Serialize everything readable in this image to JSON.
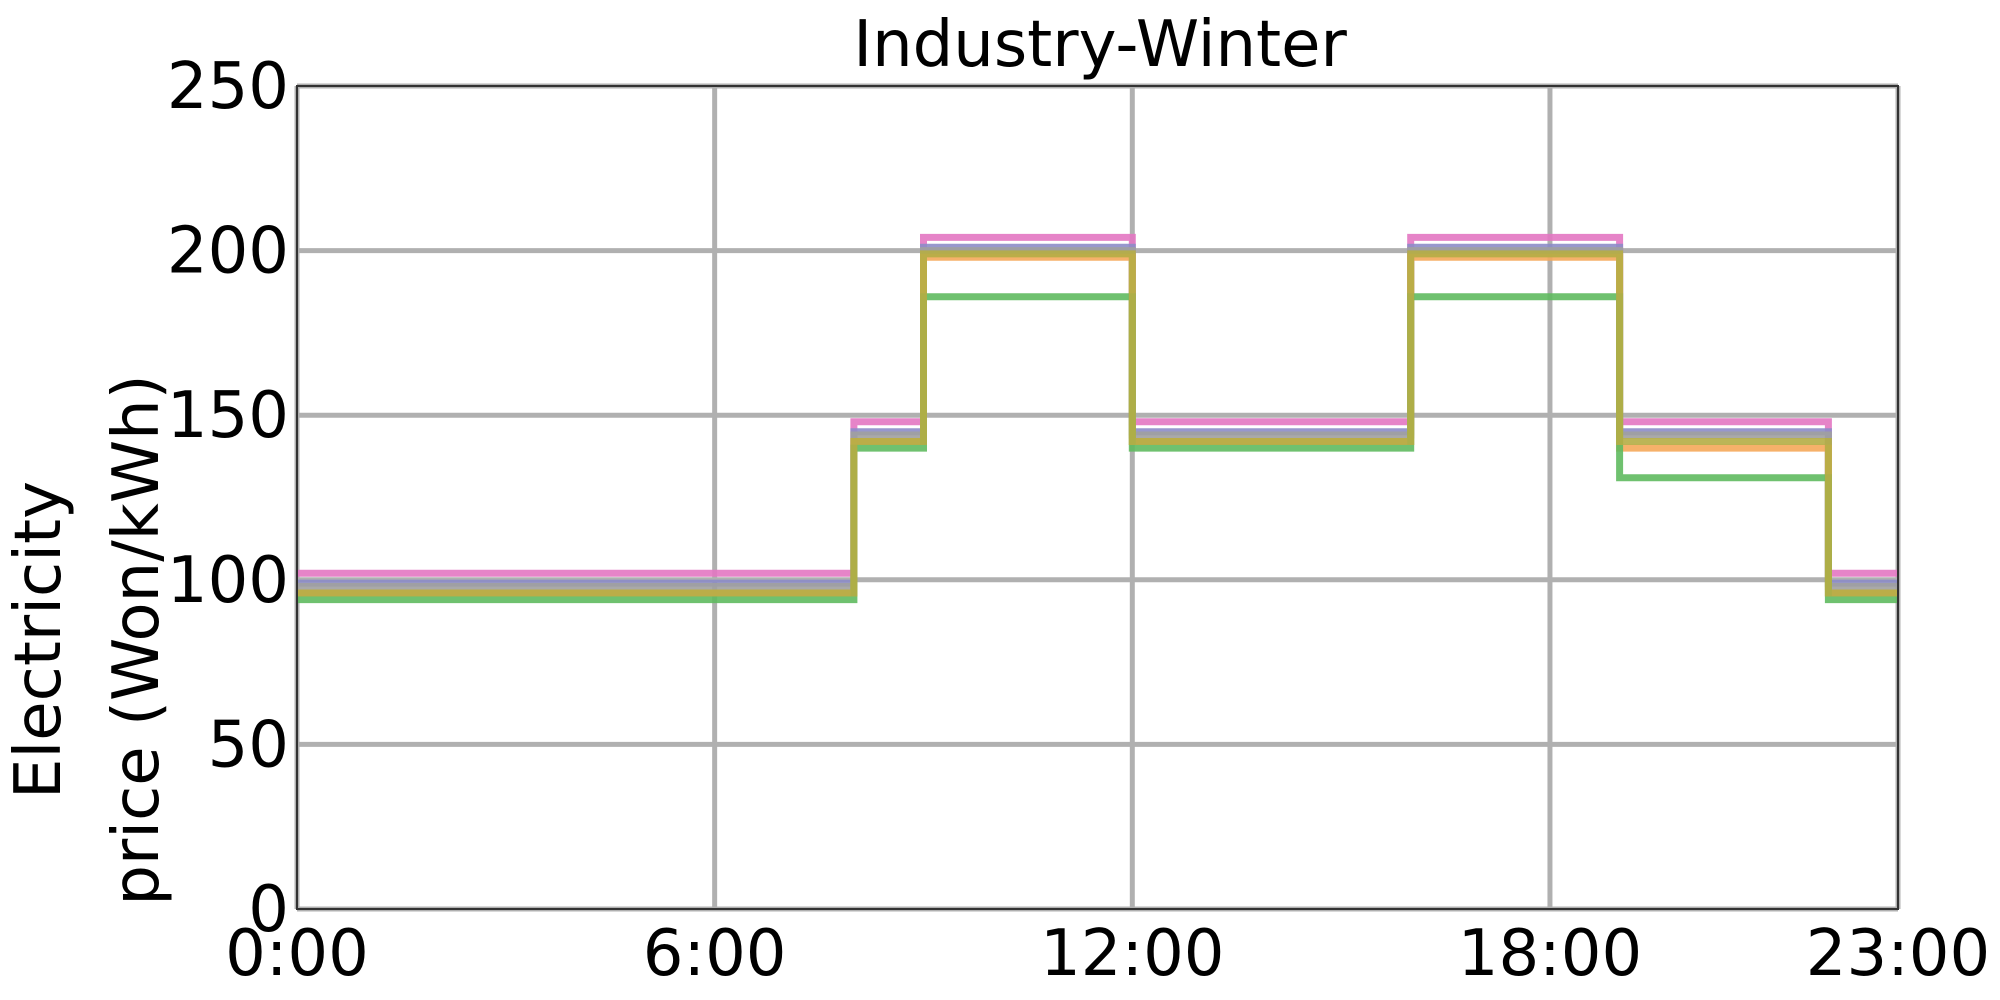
{
  "chart_data": {
    "type": "line",
    "step": "post",
    "title": "Industry-Winter",
    "xlabel": "",
    "ylabel_lines": [
      "Electricity",
      "price (Won/kWh)"
    ],
    "xlim": [
      0,
      23
    ],
    "ylim": [
      0,
      250
    ],
    "x_ticks": [
      {
        "value": 0,
        "label": "0:00"
      },
      {
        "value": 6,
        "label": "6:00"
      },
      {
        "value": 12,
        "label": "12:00"
      },
      {
        "value": 18,
        "label": "18:00"
      },
      {
        "value": 23,
        "label": "23:00"
      }
    ],
    "y_ticks": [
      {
        "value": 0,
        "label": "0"
      },
      {
        "value": 50,
        "label": "50"
      },
      {
        "value": 100,
        "label": "100"
      },
      {
        "value": 150,
        "label": "150"
      },
      {
        "value": 200,
        "label": "200"
      },
      {
        "value": 250,
        "label": "250"
      }
    ],
    "grid": true,
    "x": [
      0,
      8,
      9,
      12,
      16,
      19,
      22,
      23
    ],
    "series": [
      {
        "color": "#e377c2",
        "values": [
          102,
          148,
          204,
          148,
          204,
          148,
          102,
          102
        ]
      },
      {
        "color": "#8c8cc8",
        "values": [
          99,
          145,
          201,
          145,
          201,
          145,
          99,
          99
        ]
      },
      {
        "color": "#a0a0a0",
        "values": [
          98,
          144,
          200,
          144,
          200,
          144,
          98,
          98
        ]
      },
      {
        "color": "#f5a85a",
        "values": [
          96,
          142,
          198,
          142,
          198,
          140,
          96,
          96
        ]
      },
      {
        "color": "#5fba5f",
        "values": [
          94,
          140,
          186,
          140,
          186,
          131,
          94,
          94
        ]
      },
      {
        "color": "#b5ad45",
        "values": [
          96,
          142,
          199,
          142,
          199,
          142,
          96,
          96
        ]
      }
    ]
  }
}
